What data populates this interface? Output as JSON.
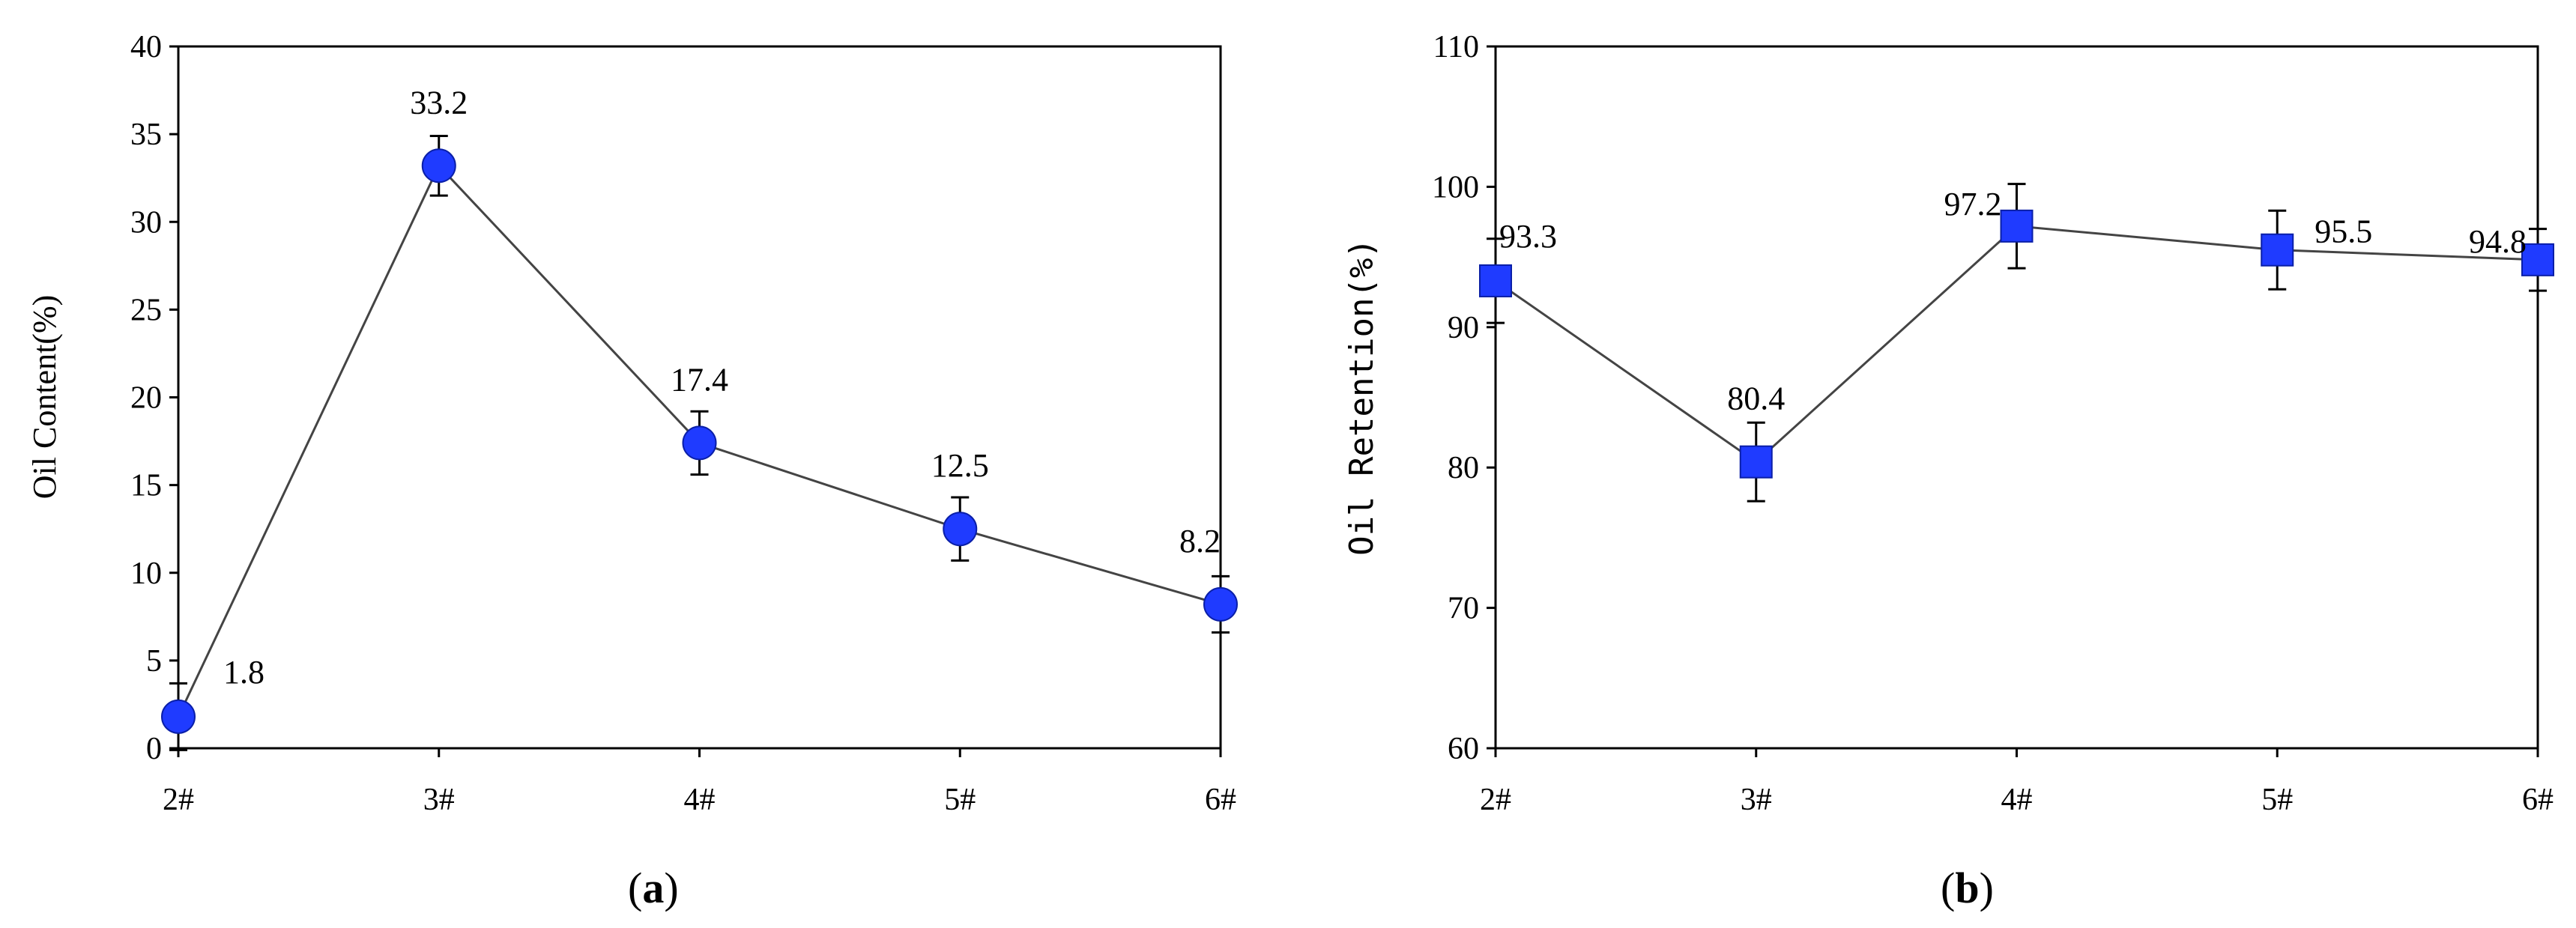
{
  "chart_data": [
    {
      "type": "line",
      "panel_label": "a",
      "categories": [
        "2#",
        "3#",
        "4#",
        "5#",
        "6#"
      ],
      "series": [
        {
          "values": [
            1.8,
            33.2,
            17.4,
            12.5,
            8.2
          ],
          "errors": [
            1.9,
            1.7,
            1.8,
            1.8,
            1.6
          ],
          "color": "#1f3bff",
          "marker": "circle"
        }
      ],
      "data_labels": [
        "1.8",
        "33.2",
        "17.4",
        "12.5",
        "8.2"
      ],
      "ylabel": "Oil Content(%)",
      "xlabel": "",
      "ylim": [
        0,
        40
      ],
      "yticks": [
        "0",
        "5",
        "10",
        "15",
        "20",
        "25",
        "30",
        "35",
        "40"
      ],
      "grid": false
    },
    {
      "type": "line",
      "panel_label": "b",
      "categories": [
        "2#",
        "3#",
        "4#",
        "5#",
        "6#"
      ],
      "series": [
        {
          "values": [
            93.3,
            80.4,
            97.2,
            95.5,
            94.8
          ],
          "errors": [
            3.0,
            2.8,
            3.0,
            2.8,
            2.2
          ],
          "color": "#1f3bff",
          "marker": "square"
        }
      ],
      "data_labels": [
        "93.3",
        "80.4",
        "97.2",
        "95.5",
        "94.8"
      ],
      "ylabel": "Oil Retention(%)",
      "xlabel": "",
      "ylim": [
        60,
        110
      ],
      "yticks": [
        "60",
        "70",
        "80",
        "90",
        "100",
        "110"
      ],
      "grid": false
    }
  ],
  "line_color": "#444444",
  "error_bar_color": "#000000"
}
